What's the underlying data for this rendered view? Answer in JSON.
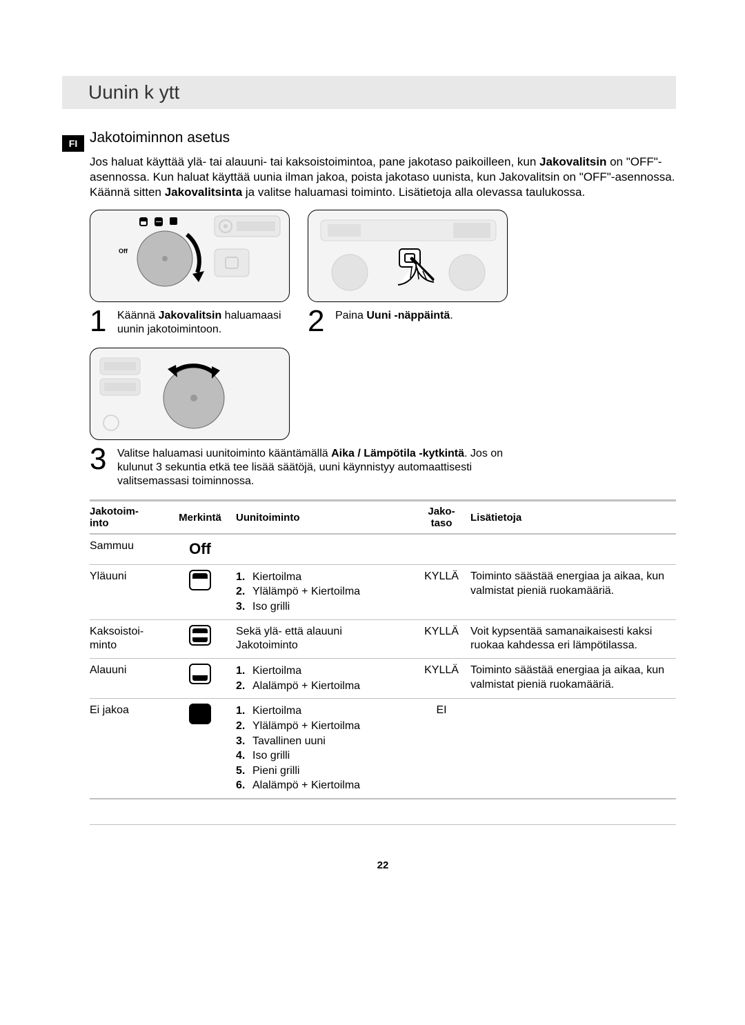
{
  "langBadge": "FI",
  "header": "Uunin k ytt",
  "section": {
    "title": "Jakotoiminnon asetus",
    "intro_parts": [
      {
        "t": "Jos haluat käyttää ylä- tai alauuni- tai kaksoistoimintoa, pane jakotaso paikoilleen, kun "
      },
      {
        "t": "Jakovalitsin",
        "b": true
      },
      {
        "t": " on \"OFF\"-asennossa. Kun haluat käyttää uunia ilman jakoa, poista jakotaso uunista, kun Jakovalitsin on \"OFF\"-asennossa. Käännä sitten "
      },
      {
        "t": "Jakovalitsinta",
        "b": true
      },
      {
        "t": " ja valitse haluamasi toiminto. Lisätietoja alla olevassa taulukossa."
      }
    ]
  },
  "steps": {
    "s1": {
      "num": "1",
      "pre": "Käännä ",
      "bold": "Jakovalitsin",
      "post": " haluamaasi uunin jakotoimintoon."
    },
    "s2": {
      "num": "2",
      "pre": "Paina ",
      "bold": "Uuni -näppäintä",
      "post": "."
    },
    "s3": {
      "num": "3",
      "pre": "Valitse haluamasi uunitoiminto kääntämällä ",
      "bold": "Aika / Lämpötila -kytkintä",
      "post": ". Jos on kulunut 3 sekuntia etkä tee lisää säätöjä, uuni käynnistyy automaattisesti valitsemassasi toiminnossa."
    }
  },
  "table": {
    "headers": {
      "mode_l1": "Jakotoim-",
      "mode_l2": "into",
      "mark": "Merkintä",
      "func": "Uunitoiminto",
      "div_l1": "Jako-",
      "div_l2": "taso",
      "info": "Lisätietoja"
    },
    "rows": [
      {
        "mode": "Sammuu",
        "mark_type": "off",
        "mark_text": "Off",
        "func_plain": "",
        "div": "",
        "info": ""
      },
      {
        "mode": "Yläuuni",
        "mark_type": "top",
        "func_list": [
          "Kiertoilma",
          "Ylälämpö + Kiertoilma",
          "Iso grilli"
        ],
        "div": "KYLLÄ",
        "info": "Toiminto säästää energiaa ja aikaa, kun valmistat pieniä ruokamääriä."
      },
      {
        "mode": "Kaksoistoi-minto",
        "mark_type": "both",
        "func_plain": "Sekä ylä- että alauuni Jakotoiminto",
        "div": "KYLLÄ",
        "info": "Voit kypsentää samanaikaisesti kaksi ruokaa kahdessa eri lämpötilassa."
      },
      {
        "mode": "Alauuni",
        "mark_type": "bot",
        "func_list": [
          "Kiertoilma",
          "Alalämpö + Kiertoilma"
        ],
        "div": "KYLLÄ",
        "info": "Toiminto säästää energiaa ja aikaa, kun valmistat pieniä ruokamääriä."
      },
      {
        "mode": "Ei jakoa",
        "mark_type": "full",
        "func_list": [
          "Kiertoilma",
          "Ylälämpö + Kiertoilma",
          "Tavallinen uuni",
          "Iso grilli",
          "Pieni grilli",
          "Alalämpö + Kiertoilma"
        ],
        "div": "EI",
        "info": ""
      }
    ]
  },
  "pageNumber": "22",
  "panel1_off_label": "Off"
}
